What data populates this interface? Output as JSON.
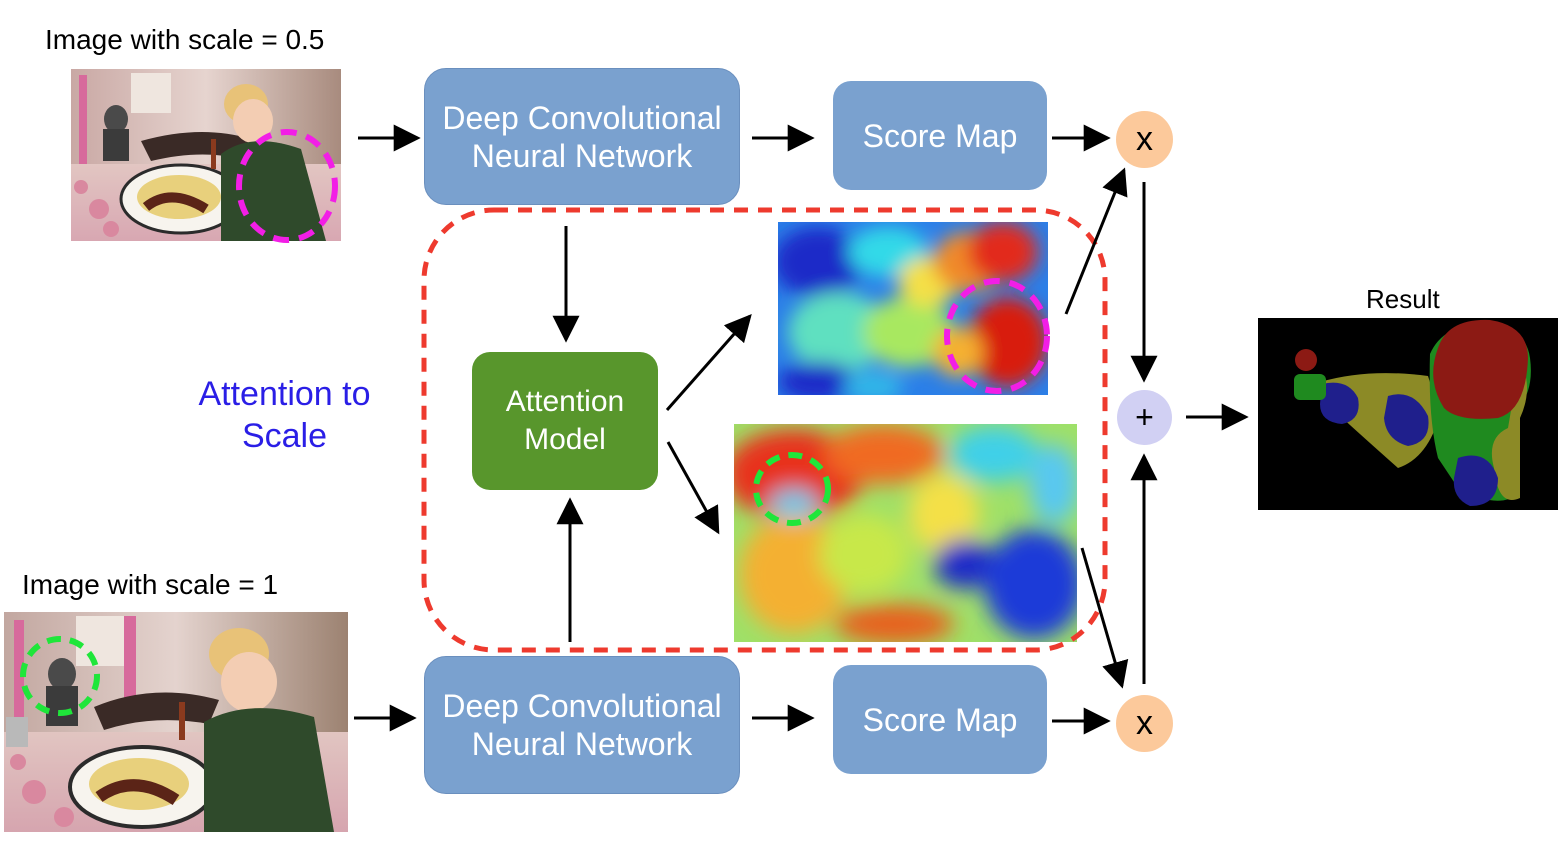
{
  "inputs": {
    "top_label": "Image with scale = 0.5",
    "bottom_label": "Image with scale = 1"
  },
  "network": {
    "top_label_line1": "Deep Convolutional",
    "top_label_line2": "Neural Network",
    "bottom_label_line1": "Deep Convolutional",
    "bottom_label_line2": "Neural Network"
  },
  "score_map": {
    "top_label": "Score Map",
    "bottom_label": "Score Map"
  },
  "attention": {
    "title_line1": "Attention to",
    "title_line2": "Scale",
    "model_line1": "Attention",
    "model_line2": "Model"
  },
  "operators": {
    "multiply_top": "x",
    "multiply_bottom": "x",
    "sum": "+"
  },
  "result": {
    "label": "Result"
  },
  "colors": {
    "box_blue": "#7aa1cf",
    "attention_green": "#58962c",
    "multiply_orange": "#fcc99b",
    "plus_lavender": "#d1d0f3",
    "dashed_red": "#ee3a2e",
    "highlight_magenta": "#f21ee6",
    "highlight_green": "#1fe63a",
    "title_blue": "#2a1ee6"
  }
}
